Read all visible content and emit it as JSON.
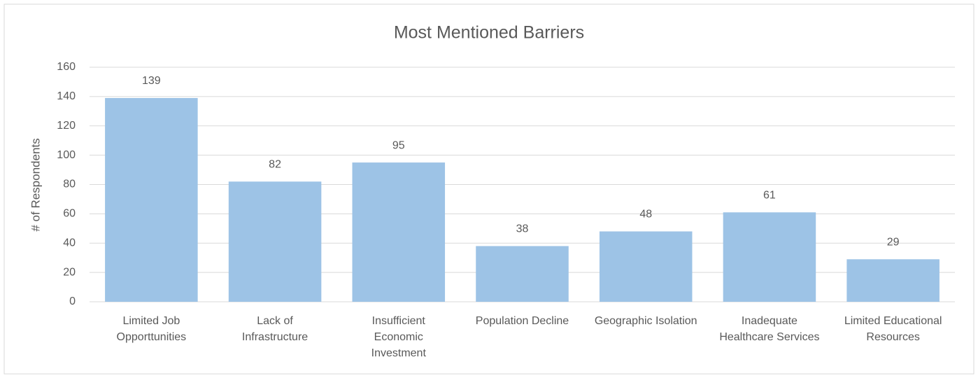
{
  "chart_data": {
    "type": "bar",
    "title": "Most Mentioned Barriers",
    "y_label": "# of Respondents",
    "categories": [
      "Limited Job Opporttunities",
      "Lack of Infrastructure",
      "Insufficient Economic Investment",
      "Population Decline",
      "Geographic Isolation",
      "Inadequate Healthcare Services",
      "Limited Educational Resources"
    ],
    "values": [
      139,
      82,
      95,
      38,
      48,
      61,
      29
    ],
    "color": "#9dc3e6",
    "ylim": [
      0,
      160
    ],
    "yticks": [
      0,
      20,
      40,
      60,
      80,
      100,
      120,
      140,
      160
    ],
    "grid": true
  }
}
